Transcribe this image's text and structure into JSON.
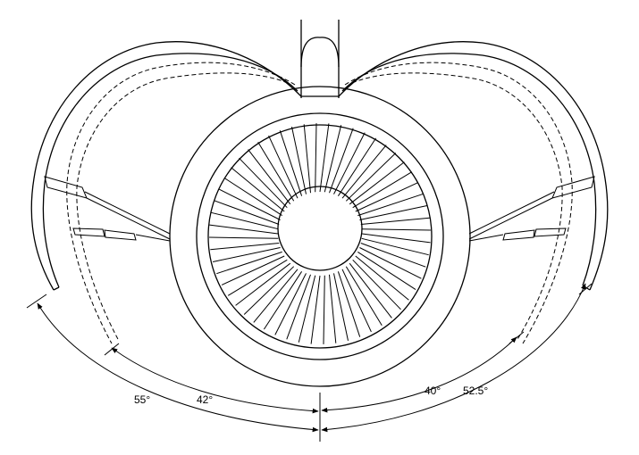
{
  "angles": {
    "left_outer": "55°",
    "left_inner": "42°",
    "right_inner": "40°",
    "right_outer": "52.5°"
  },
  "fan": {
    "blade_count": 56
  },
  "colors": {
    "line": "#000000",
    "background": "#ffffff"
  }
}
